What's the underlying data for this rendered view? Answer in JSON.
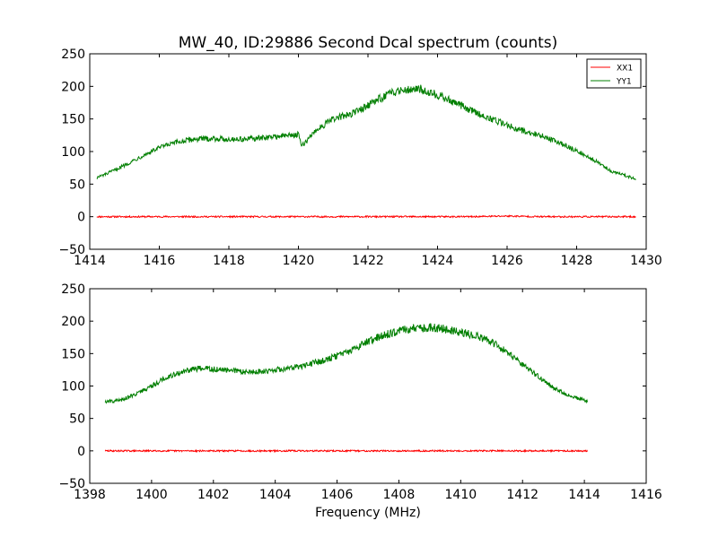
{
  "chart_data": [
    {
      "type": "line",
      "title": "MW_40, ID:29886 Second Dcal spectrum (counts)",
      "xlabel": "",
      "ylabel": "",
      "xlim": [
        1414,
        1430
      ],
      "ylim": [
        -50,
        250
      ],
      "xticks": [
        1414,
        1416,
        1418,
        1420,
        1422,
        1424,
        1426,
        1428,
        1430
      ],
      "yticks": [
        -50,
        0,
        50,
        100,
        150,
        200,
        250
      ],
      "grid": false,
      "legend": "top-right",
      "x_range": [
        1414.2,
        1429.7
      ],
      "series": [
        {
          "name": "XX1",
          "color": "#ff0000",
          "x": [
            1414.2,
            1415,
            1416,
            1417,
            1418,
            1419,
            1420,
            1421,
            1422,
            1423,
            1424,
            1425,
            1426,
            1427,
            1428,
            1429,
            1429.7
          ],
          "values": [
            0,
            0,
            0,
            0,
            0,
            0,
            0,
            0,
            0,
            0,
            0,
            0,
            1,
            0,
            0,
            0,
            0
          ]
        },
        {
          "name": "YY1",
          "color": "#007f00",
          "x": [
            1414.2,
            1414.5,
            1415,
            1415.5,
            1416,
            1416.5,
            1417,
            1417.5,
            1418,
            1418.5,
            1419,
            1419.5,
            1420,
            1420.1,
            1420.5,
            1421,
            1421.5,
            1422,
            1422.5,
            1423,
            1423.5,
            1424,
            1424.5,
            1425,
            1425.5,
            1426,
            1426.5,
            1427,
            1427.5,
            1428,
            1428.5,
            1429,
            1429.7
          ],
          "values": [
            60,
            66,
            79,
            93,
            106,
            114,
            119,
            120,
            119,
            119,
            121,
            124,
            126,
            108,
            133,
            150,
            157,
            171,
            186,
            196,
            196,
            187,
            175,
            162,
            151,
            141,
            131,
            124,
            114,
            101,
            87,
            70,
            58
          ]
        }
      ]
    },
    {
      "type": "line",
      "title": "",
      "xlabel": "Frequency (MHz)",
      "ylabel": "",
      "xlim": [
        1398,
        1416
      ],
      "ylim": [
        -50,
        250
      ],
      "xticks": [
        1398,
        1400,
        1402,
        1404,
        1406,
        1408,
        1410,
        1412,
        1414,
        1416
      ],
      "yticks": [
        -50,
        0,
        50,
        100,
        150,
        200,
        250
      ],
      "grid": false,
      "legend": "none",
      "x_range": [
        1398.5,
        1414.1
      ],
      "series": [
        {
          "name": "",
          "color": "#ff0000",
          "x": [
            1398.5,
            1400,
            1402,
            1404,
            1406,
            1408,
            1410,
            1412,
            1414.1
          ],
          "values": [
            0,
            0,
            0,
            0,
            0,
            0,
            0,
            0,
            0
          ]
        },
        {
          "name": "",
          "color": "#007f00",
          "x": [
            1398.5,
            1399,
            1399.5,
            1400,
            1400.5,
            1401,
            1401.5,
            1402,
            1402.5,
            1403,
            1403.5,
            1404,
            1404.5,
            1405,
            1405.5,
            1406,
            1406.5,
            1407,
            1407.5,
            1408,
            1408.5,
            1409,
            1409.5,
            1410,
            1410.5,
            1411,
            1411.5,
            1412,
            1412.5,
            1413,
            1413.5,
            1414.1
          ],
          "values": [
            76,
            78,
            88,
            100,
            114,
            122,
            127,
            126,
            124,
            122,
            122,
            125,
            128,
            132,
            139,
            146,
            156,
            169,
            178,
            185,
            189,
            190,
            188,
            183,
            177,
            168,
            152,
            133,
            115,
            97,
            85,
            77
          ]
        }
      ]
    }
  ]
}
